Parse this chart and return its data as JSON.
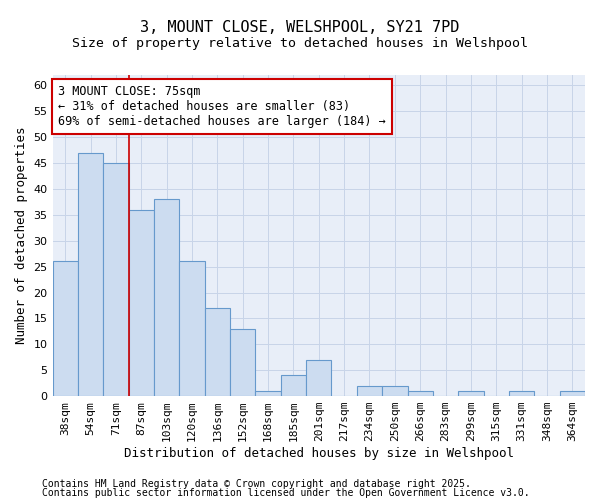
{
  "title_line1": "3, MOUNT CLOSE, WELSHPOOL, SY21 7PD",
  "title_line2": "Size of property relative to detached houses in Welshpool",
  "xlabel": "Distribution of detached houses by size in Welshpool",
  "ylabel": "Number of detached properties",
  "categories": [
    "38sqm",
    "54sqm",
    "71sqm",
    "87sqm",
    "103sqm",
    "120sqm",
    "136sqm",
    "152sqm",
    "168sqm",
    "185sqm",
    "201sqm",
    "217sqm",
    "234sqm",
    "250sqm",
    "266sqm",
    "283sqm",
    "299sqm",
    "315sqm",
    "331sqm",
    "348sqm",
    "364sqm"
  ],
  "values": [
    26,
    47,
    45,
    36,
    38,
    26,
    17,
    13,
    1,
    4,
    7,
    0,
    2,
    2,
    1,
    0,
    1,
    0,
    1,
    0,
    1
  ],
  "bar_color": "#ccdcf0",
  "bar_edge_color": "#6699cc",
  "vline_x": 2.5,
  "vline_color": "#cc0000",
  "annotation_text": "3 MOUNT CLOSE: 75sqm\n← 31% of detached houses are smaller (83)\n69% of semi-detached houses are larger (184) →",
  "annotation_box_edgecolor": "#cc0000",
  "annotation_fontsize": 8.5,
  "ylim": [
    0,
    62
  ],
  "yticks": [
    0,
    5,
    10,
    15,
    20,
    25,
    30,
    35,
    40,
    45,
    50,
    55,
    60
  ],
  "grid_color": "#c8d4e8",
  "bg_color": "#e8eef8",
  "plot_bg_color": "#e8eef8",
  "footer_line1": "Contains HM Land Registry data © Crown copyright and database right 2025.",
  "footer_line2": "Contains public sector information licensed under the Open Government Licence v3.0.",
  "title_fontsize": 11,
  "subtitle_fontsize": 9.5,
  "axis_label_fontsize": 9,
  "tick_fontsize": 8,
  "footer_fontsize": 7
}
